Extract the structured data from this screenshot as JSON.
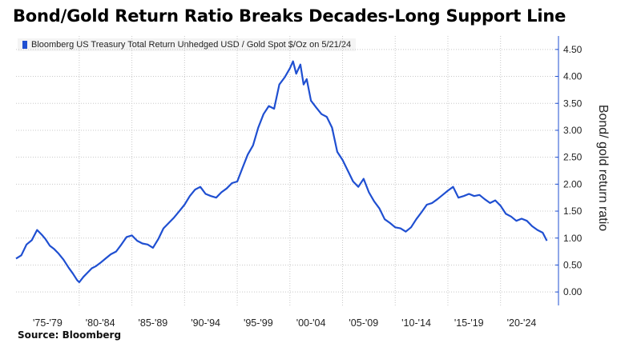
{
  "header": {
    "title": "Bond/Gold Return Ratio Breaks Decades-Long Support Line"
  },
  "legend": {
    "label": "Bloomberg US Treasury Total Return Unhedged USD / Gold Spot $/Oz on 5/21/24"
  },
  "footer": {
    "source": "Source: Bloomberg"
  },
  "colors": {
    "series": "#1f4fd1",
    "grid": "#c8c8c8",
    "axis": "#1f4fd1"
  },
  "chart_data": {
    "type": "line",
    "title": "Bond/Gold Return Ratio Breaks Decades-Long Support Line",
    "ylabel": "Bond/ gold return ratio",
    "xlabel": "",
    "ylim": [
      -0.25,
      4.75
    ],
    "yticks": [
      0.0,
      0.5,
      1.0,
      1.5,
      2.0,
      2.5,
      3.0,
      3.5,
      4.0,
      4.5
    ],
    "ytick_labels": [
      "0.00",
      "0.50",
      "1.00",
      "1.50",
      "2.00",
      "2.50",
      "3.00",
      "3.50",
      "4.00",
      "4.50"
    ],
    "x_range": [
      1974.0,
      2025.5
    ],
    "x_categories": [
      "'75-'79",
      "'80-'84",
      "'85-'89",
      "'90-'94",
      "'95-'99",
      "'00-'04",
      "'05-'09",
      "'10-'14",
      "'15-'19",
      "'20-'24"
    ],
    "x_category_centers": [
      1977,
      1982,
      1987,
      1992,
      1997,
      2002,
      2007,
      2012,
      2017,
      2022
    ],
    "grid": true,
    "legend_position": "top-left",
    "y_axis_side": "right",
    "series": [
      {
        "name": "Bloomberg US Treasury Total Return Unhedged USD / Gold Spot $/Oz on 5/21/24",
        "x": [
          1974.0,
          1974.5,
          1975.0,
          1975.5,
          1976.0,
          1976.5,
          1976.8,
          1977.2,
          1977.6,
          1978.0,
          1978.5,
          1979.0,
          1979.4,
          1979.8,
          1980.0,
          1980.4,
          1980.8,
          1981.2,
          1981.6,
          1982.0,
          1982.5,
          1983.0,
          1983.5,
          1984.0,
          1984.5,
          1985.0,
          1985.5,
          1986.0,
          1986.5,
          1987.0,
          1987.5,
          1988.0,
          1988.5,
          1989.0,
          1989.5,
          1990.0,
          1990.5,
          1991.0,
          1991.5,
          1992.0,
          1992.5,
          1993.0,
          1993.5,
          1994.0,
          1994.5,
          1995.0,
          1995.5,
          1996.0,
          1996.5,
          1997.0,
          1997.5,
          1998.0,
          1998.5,
          1999.0,
          1999.5,
          2000.0,
          2000.3,
          2000.6,
          2001.0,
          2001.3,
          2001.6,
          2002.0,
          2002.5,
          2003.0,
          2003.5,
          2004.0,
          2004.5,
          2005.0,
          2005.5,
          2006.0,
          2006.5,
          2007.0,
          2007.5,
          2008.0,
          2008.5,
          2009.0,
          2009.5,
          2010.0,
          2010.5,
          2011.0,
          2011.5,
          2012.0,
          2012.5,
          2013.0,
          2013.5,
          2014.0,
          2014.5,
          2015.0,
          2015.5,
          2016.0,
          2016.5,
          2017.0,
          2017.5,
          2018.0,
          2018.5,
          2019.0,
          2019.5,
          2020.0,
          2020.5,
          2021.0,
          2021.5,
          2022.0,
          2022.5,
          2023.0,
          2023.5,
          2024.0,
          2024.4
        ],
        "values": [
          0.62,
          0.68,
          0.88,
          0.96,
          1.15,
          1.05,
          0.98,
          0.86,
          0.8,
          0.72,
          0.6,
          0.45,
          0.34,
          0.22,
          0.18,
          0.28,
          0.36,
          0.44,
          0.48,
          0.54,
          0.62,
          0.7,
          0.75,
          0.88,
          1.02,
          1.05,
          0.95,
          0.9,
          0.88,
          0.82,
          0.98,
          1.18,
          1.28,
          1.38,
          1.5,
          1.62,
          1.78,
          1.9,
          1.95,
          1.82,
          1.78,
          1.75,
          1.85,
          1.92,
          2.02,
          2.05,
          2.3,
          2.55,
          2.72,
          3.05,
          3.3,
          3.45,
          3.4,
          3.85,
          3.98,
          4.15,
          4.28,
          4.05,
          4.22,
          3.85,
          3.95,
          3.55,
          3.42,
          3.3,
          3.25,
          3.05,
          2.6,
          2.45,
          2.25,
          2.05,
          1.95,
          2.1,
          1.85,
          1.68,
          1.55,
          1.35,
          1.28,
          1.2,
          1.18,
          1.12,
          1.2,
          1.35,
          1.48,
          1.62,
          1.65,
          1.72,
          1.8,
          1.88,
          1.95,
          1.75,
          1.78,
          1.82,
          1.78,
          1.8,
          1.72,
          1.65,
          1.7,
          1.6,
          1.45,
          1.4,
          1.32,
          1.36,
          1.32,
          1.22,
          1.15,
          1.1,
          0.95
        ]
      }
    ]
  }
}
